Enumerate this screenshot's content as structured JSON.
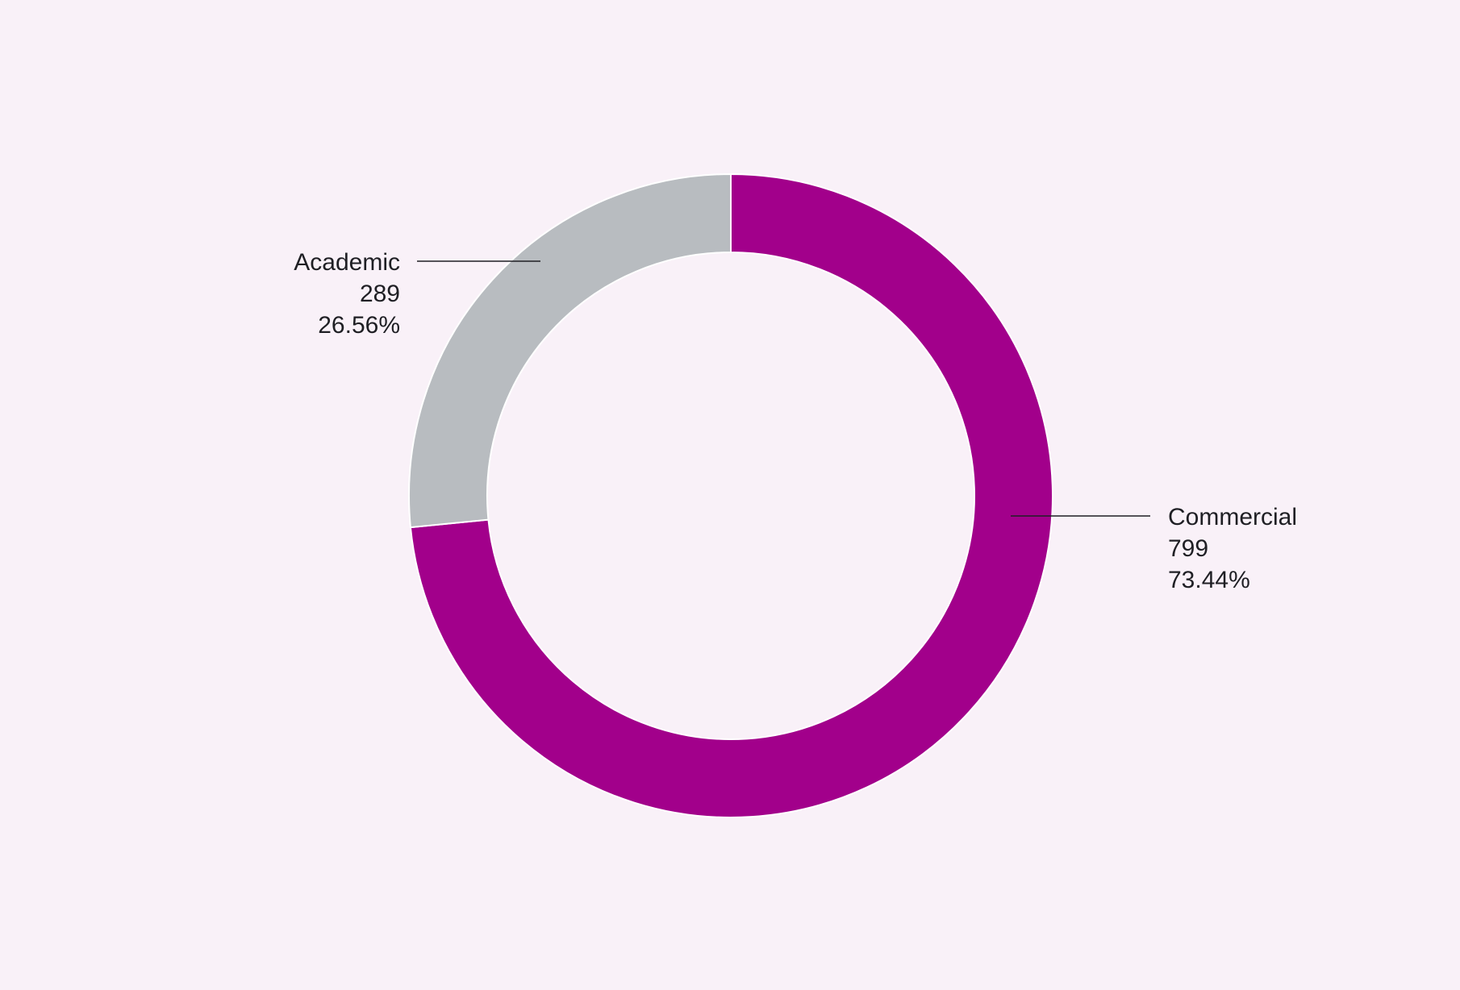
{
  "background_color": "#f9f1f8",
  "chart_data": {
    "type": "pie",
    "variant": "donut",
    "title": "",
    "slices": [
      {
        "name": "Commercial",
        "value": 799,
        "value_label": "799",
        "percent_label": "73.44%",
        "color": "#a2008b"
      },
      {
        "name": "Academic",
        "value": 289,
        "value_label": "289",
        "percent_label": "26.56%",
        "color": "#b8bcc0"
      }
    ],
    "start_angle": "12 o'clock",
    "direction": "clockwise",
    "legend": "none",
    "labels": "outside with leader lines"
  }
}
